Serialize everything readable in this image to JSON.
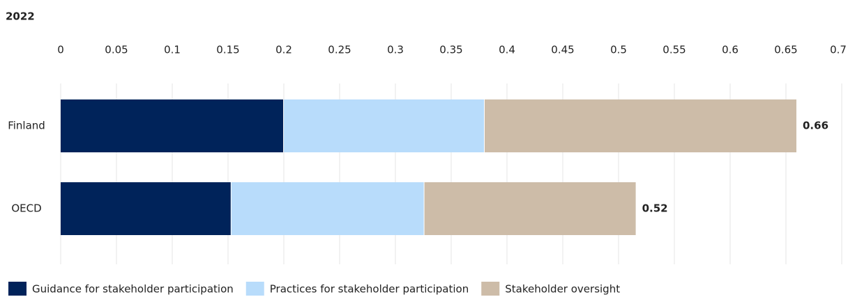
{
  "chart_data": {
    "type": "stacked_bar_horizontal",
    "title": "2022",
    "categories": [
      "Finland",
      "OECD"
    ],
    "series": [
      {
        "name": "Guidance for stakeholder participation",
        "color": "#00235a",
        "values": [
          0.2,
          0.153
        ]
      },
      {
        "name": "Practices for stakeholder participation",
        "color": "#b8dcfb",
        "values": [
          0.18,
          0.173
        ]
      },
      {
        "name": "Stakeholder oversight",
        "color": "#cdbca8",
        "values": [
          0.28,
          0.19
        ]
      }
    ],
    "totals": [
      0.66,
      0.52
    ],
    "xlim": [
      0,
      0.7
    ],
    "xticks": [
      0,
      0.05,
      0.1,
      0.15,
      0.2,
      0.25,
      0.3,
      0.35,
      0.4,
      0.45,
      0.5,
      0.55,
      0.6,
      0.65,
      0.7
    ],
    "grid": true
  }
}
